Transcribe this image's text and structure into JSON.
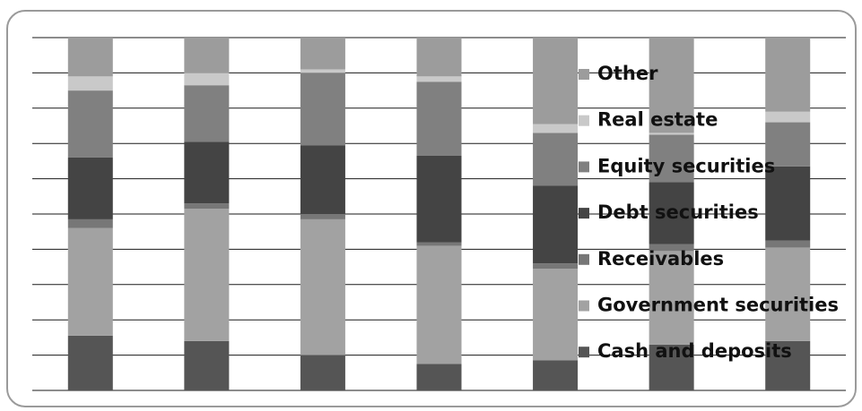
{
  "chart_data": {
    "type": "stacked_bar",
    "categories": [
      null,
      null,
      null,
      null,
      null,
      null,
      null
    ],
    "series": [
      {
        "name": "Cash and deposits",
        "color": "#555555",
        "values": [
          15.5,
          14,
          10,
          7.5,
          8.5,
          13,
          14
        ]
      },
      {
        "name": "Government securities",
        "color": "#a2a2a2",
        "values": [
          30.5,
          37.5,
          38.5,
          33.5,
          26,
          26.5,
          26.5
        ]
      },
      {
        "name": "Receivables",
        "color": "#777777",
        "values": [
          2.5,
          1.5,
          1.5,
          1,
          1.5,
          2,
          2
        ]
      },
      {
        "name": "Debt securities",
        "color": "#444444",
        "values": [
          17.5,
          17.5,
          19.5,
          24.5,
          22,
          17.5,
          21
        ]
      },
      {
        "name": "Equity securities",
        "color": "#808080",
        "values": [
          19,
          16,
          20.5,
          21,
          15,
          13.5,
          12.5
        ]
      },
      {
        "name": "Real estate",
        "color": "#c9c9c9",
        "values": [
          4,
          3.5,
          1,
          1.5,
          2.5,
          0.5,
          3
        ]
      },
      {
        "name": "Other",
        "color": "#9c9c9c",
        "values": [
          11,
          10,
          9,
          11,
          24.5,
          27,
          21
        ]
      }
    ],
    "ylim": [
      0,
      100
    ],
    "yticks": [
      0,
      10,
      20,
      30,
      40,
      50,
      60,
      70,
      80,
      90,
      100
    ],
    "grid": true,
    "tick_labels": false,
    "legend": "right"
  }
}
